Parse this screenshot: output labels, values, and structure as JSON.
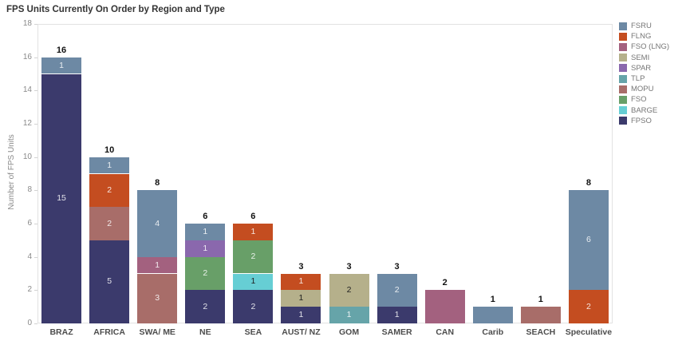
{
  "chart_data": {
    "type": "bar",
    "stacked": true,
    "title": "FPS Units Currently On Order by Region and Type",
    "xlabel": "",
    "ylabel": "Number of FPS Units",
    "ylim": [
      0,
      18
    ],
    "ytick_step": 2,
    "grid": false,
    "legend_position": "right",
    "types": [
      {
        "name": "FSRU",
        "color": "#6d89a4",
        "label_style": "light"
      },
      {
        "name": "FLNG",
        "color": "#c44d20",
        "label_style": "light"
      },
      {
        "name": "FSO (LNG)",
        "color": "#a3617f",
        "label_style": "light"
      },
      {
        "name": "SEMI",
        "color": "#b5b08b",
        "label_style": "dark"
      },
      {
        "name": "SPAR",
        "color": "#8a68ad",
        "label_style": "light"
      },
      {
        "name": "TLP",
        "color": "#66a4a9",
        "label_style": "light"
      },
      {
        "name": "MOPU",
        "color": "#a86d69",
        "label_style": "light"
      },
      {
        "name": "FSO",
        "color": "#689f68",
        "label_style": "light"
      },
      {
        "name": "BARGE",
        "color": "#66ced4",
        "label_style": "dark"
      },
      {
        "name": "FPSO",
        "color": "#3b3a6c",
        "label_style": "light"
      }
    ],
    "categories": [
      "BRAZ",
      "AFRICA",
      "SWA/ ME",
      "NE",
      "SEA",
      "AUST/ NZ",
      "GOM",
      "SAMER",
      "CAN",
      "Carib",
      "SEACH",
      "Speculative"
    ],
    "bars": [
      {
        "category": "BRAZ",
        "total": 16,
        "show_segment_labels": true,
        "segments": [
          {
            "type": "FPSO",
            "value": 15
          },
          {
            "type": "FSRU",
            "value": 1
          }
        ]
      },
      {
        "category": "AFRICA",
        "total": 10,
        "show_segment_labels": true,
        "segments": [
          {
            "type": "FPSO",
            "value": 5
          },
          {
            "type": "MOPU",
            "value": 2
          },
          {
            "type": "FLNG",
            "value": 2
          },
          {
            "type": "FSRU",
            "value": 1
          }
        ]
      },
      {
        "category": "SWA/ ME",
        "total": 8,
        "show_segment_labels": true,
        "segments": [
          {
            "type": "MOPU",
            "value": 3
          },
          {
            "type": "FSO (LNG)",
            "value": 1
          },
          {
            "type": "FSRU",
            "value": 4
          }
        ]
      },
      {
        "category": "NE",
        "total": 6,
        "show_segment_labels": true,
        "segments": [
          {
            "type": "FPSO",
            "value": 2
          },
          {
            "type": "FSO",
            "value": 2
          },
          {
            "type": "SPAR",
            "value": 1
          },
          {
            "type": "FSRU",
            "value": 1
          }
        ]
      },
      {
        "category": "SEA",
        "total": 6,
        "show_segment_labels": true,
        "segments": [
          {
            "type": "FPSO",
            "value": 2
          },
          {
            "type": "BARGE",
            "value": 1
          },
          {
            "type": "FSO",
            "value": 2
          },
          {
            "type": "FLNG",
            "value": 1
          }
        ]
      },
      {
        "category": "AUST/ NZ",
        "total": 3,
        "show_segment_labels": true,
        "segments": [
          {
            "type": "FPSO",
            "value": 1
          },
          {
            "type": "SEMI",
            "value": 1
          },
          {
            "type": "FLNG",
            "value": 1
          }
        ]
      },
      {
        "category": "GOM",
        "total": 3,
        "show_segment_labels": true,
        "segments": [
          {
            "type": "TLP",
            "value": 1
          },
          {
            "type": "SEMI",
            "value": 2
          }
        ]
      },
      {
        "category": "SAMER",
        "total": 3,
        "show_segment_labels": true,
        "segments": [
          {
            "type": "FPSO",
            "value": 1
          },
          {
            "type": "FSRU",
            "value": 2
          }
        ]
      },
      {
        "category": "CAN",
        "total": 2,
        "show_segment_labels": false,
        "segments": [
          {
            "type": "FSO (LNG)",
            "value": 2
          }
        ]
      },
      {
        "category": "Carib",
        "total": 1,
        "show_segment_labels": false,
        "segments": [
          {
            "type": "FSRU",
            "value": 1
          }
        ]
      },
      {
        "category": "SEACH",
        "total": 1,
        "show_segment_labels": false,
        "segments": [
          {
            "type": "MOPU",
            "value": 1
          }
        ]
      },
      {
        "category": "Speculative",
        "total": 8,
        "show_segment_labels": true,
        "segments": [
          {
            "type": "FLNG",
            "value": 2
          },
          {
            "type": "FSRU",
            "value": 6
          }
        ]
      }
    ]
  }
}
